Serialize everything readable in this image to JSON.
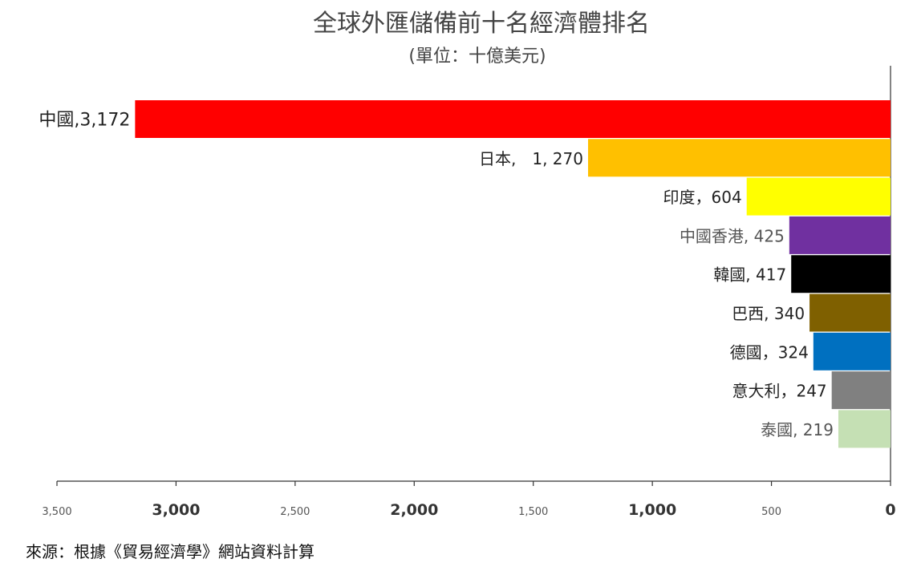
{
  "chart_data": {
    "type": "bar",
    "orientation": "horizontal",
    "x_reversed": true,
    "title": "全球外匯儲備前十名經濟體排名",
    "subtitle": "(單位：十億美元)",
    "source": "來源：根據《貿易經濟學》網站資料計算",
    "xlim": [
      0,
      3500
    ],
    "xticks": [
      {
        "value": 3500,
        "label": "3,500",
        "bold": false
      },
      {
        "value": 3000,
        "label": "3,000",
        "bold": true
      },
      {
        "value": 2500,
        "label": "2,500",
        "bold": false
      },
      {
        "value": 2000,
        "label": "2,000",
        "bold": true
      },
      {
        "value": 1500,
        "label": "1,500",
        "bold": false
      },
      {
        "value": 1000,
        "label": "1,000",
        "bold": true
      },
      {
        "value": 500,
        "label": "500",
        "bold": false
      },
      {
        "value": 0,
        "label": "0",
        "bold": true
      }
    ],
    "bars": [
      {
        "category": "中國",
        "value": 3172,
        "label": "中國,3,172",
        "color": "#ff0000",
        "label_color": "#222222"
      },
      {
        "category": "日本",
        "value": 1270,
        "label": "日本,　1, 270",
        "color": "#ffc000",
        "label_color": "#222222"
      },
      {
        "category": "印度",
        "value": 604,
        "label": "印度，604",
        "color": "#ffff00",
        "label_color": "#222222"
      },
      {
        "category": "中國香港",
        "value": 425,
        "label": "中國香港, 425",
        "color": "#7030a0",
        "label_color": "#555555"
      },
      {
        "category": "韓國",
        "value": 417,
        "label": "韓國, 417",
        "color": "#000000",
        "label_color": "#222222"
      },
      {
        "category": "巴西",
        "value": 340,
        "label": "巴西, 340",
        "color": "#7f6000",
        "label_color": "#222222"
      },
      {
        "category": "德國",
        "value": 324,
        "label": "德國，324",
        "color": "#0070c0",
        "label_color": "#222222"
      },
      {
        "category": "意大利",
        "value": 247,
        "label": "意大利，247",
        "color": "#808080",
        "label_color": "#222222"
      },
      {
        "category": "泰國",
        "value": 219,
        "label": "泰國, 219",
        "color": "#c5e0b4",
        "label_color": "#555555"
      }
    ]
  }
}
